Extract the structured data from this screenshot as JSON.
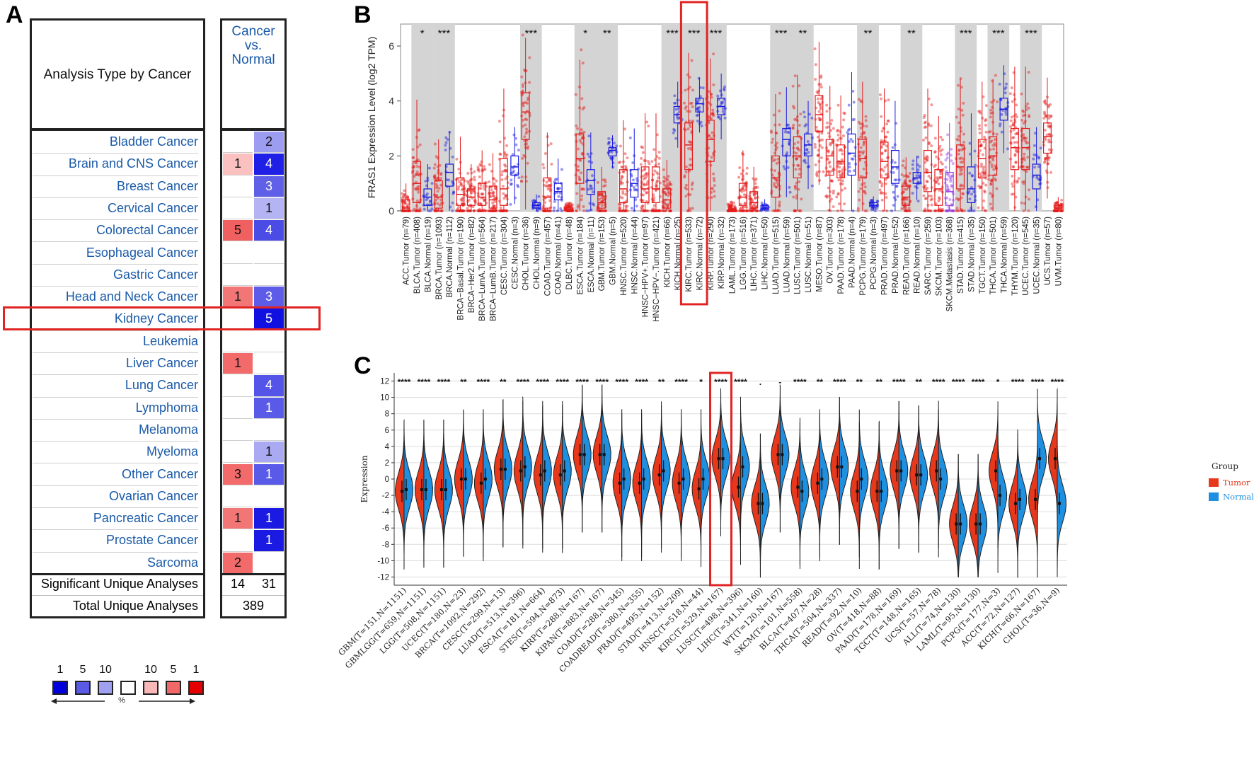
{
  "panelA": {
    "letter": "A",
    "header_analysis": "Analysis Type by Cancer",
    "header_col": [
      "Cancer",
      "vs.",
      "Normal"
    ],
    "rows": [
      {
        "name": "Bladder Cancer",
        "over": "",
        "under": "2",
        "over_shade": "",
        "under_shade": "#9c9cf0"
      },
      {
        "name": "Brain and CNS Cancer",
        "over": "1",
        "under": "4",
        "over_shade": "#fbc0c0",
        "under_shade": "#1f1fe6"
      },
      {
        "name": "Breast Cancer",
        "over": "",
        "under": "3",
        "over_shade": "",
        "under_shade": "#5f5fe8"
      },
      {
        "name": "Cervical Cancer",
        "over": "",
        "under": "1",
        "over_shade": "",
        "under_shade": "#b4b4f4"
      },
      {
        "name": "Colorectal Cancer",
        "over": "5",
        "under": "4",
        "over_shade": "#f06060",
        "under_shade": "#4b4be6"
      },
      {
        "name": "Esophageal Cancer",
        "over": "",
        "under": "",
        "over_shade": "",
        "under_shade": ""
      },
      {
        "name": "Gastric Cancer",
        "over": "",
        "under": "",
        "over_shade": "",
        "under_shade": ""
      },
      {
        "name": "Head and Neck Cancer",
        "over": "1",
        "under": "3",
        "over_shade": "#f27676",
        "under_shade": "#5c5ce8"
      },
      {
        "name": "Kidney Cancer",
        "over": "",
        "under": "5",
        "over_shade": "",
        "under_shade": "#1010e0"
      },
      {
        "name": "Leukemia",
        "over": "",
        "under": "",
        "over_shade": "",
        "under_shade": ""
      },
      {
        "name": "Liver Cancer",
        "over": "1",
        "under": "",
        "over_shade": "#f26a6a",
        "under_shade": ""
      },
      {
        "name": "Lung Cancer",
        "over": "",
        "under": "4",
        "over_shade": "",
        "under_shade": "#5454e8"
      },
      {
        "name": "Lymphoma",
        "over": "",
        "under": "1",
        "over_shade": "",
        "under_shade": "#5a5ae8"
      },
      {
        "name": "Melanoma",
        "over": "",
        "under": "",
        "over_shade": "",
        "under_shade": ""
      },
      {
        "name": "Myeloma",
        "over": "",
        "under": "1",
        "over_shade": "",
        "under_shade": "#aaaaf2"
      },
      {
        "name": "Other Cancer",
        "over": "3",
        "under": "1",
        "over_shade": "#f26a6a",
        "under_shade": "#5a5ae8"
      },
      {
        "name": "Ovarian Cancer",
        "over": "",
        "under": "",
        "over_shade": "",
        "under_shade": ""
      },
      {
        "name": "Pancreatic Cancer",
        "over": "1",
        "under": "1",
        "over_shade": "#f27676",
        "under_shade": "#1a1ae2"
      },
      {
        "name": "Prostate Cancer",
        "over": "",
        "under": "1",
        "over_shade": "",
        "under_shade": "#1a1ae2"
      },
      {
        "name": "Sarcoma",
        "over": "2",
        "under": "",
        "over_shade": "#f26a6a",
        "under_shade": ""
      }
    ],
    "sig_label": "Significant Unique Analyses",
    "sig_over": "14",
    "sig_under": "31",
    "total_label": "Total Unique Analyses",
    "total_value": "389",
    "legend_labels_blue": [
      "1",
      "5",
      "10"
    ],
    "legend_labels_red": [
      "10",
      "5",
      "1"
    ],
    "legend_colors": [
      "#0000dc",
      "#5a5ae6",
      "#a0a0f0",
      "#ffffff",
      "#f8b8b8",
      "#f06868",
      "#e60000"
    ],
    "legend_unit": "%",
    "highlight": "Kidney Cancer"
  },
  "panelB": {
    "letter": "B",
    "chart_data": {
      "type": "box",
      "ylabel": "FRAS1 Expression Level (log2 TPM)",
      "ylim": [
        0,
        6.8
      ],
      "yticks": [
        "0",
        "2",
        "4",
        "6"
      ],
      "categories": [
        "ACC.Tumor (n=79)",
        "BLCA.Tumor (n=408)",
        "BLCA.Normal (n=19)",
        "BRCA.Tumor (n=1093)",
        "BRCA.Normal (n=112)",
        "BRCA−Basal.Tumor (n=190)",
        "BRCA−Her2.Tumor (n=82)",
        "BRCA−LumA.Tumor (n=564)",
        "BRCA−LumB.Tumor (n=217)",
        "CESC.Tumor (n=304)",
        "CESC.Normal (n=3)",
        "CHOL.Tumor (n=36)",
        "CHOL.Normal (n=9)",
        "COAD.Tumor (n=457)",
        "COAD.Normal (n=41)",
        "DLBC.Tumor (n=48)",
        "ESCA.Tumor (n=184)",
        "ESCA.Normal (n=11)",
        "GBM.Tumor (n=153)",
        "GBM.Normal (n=5)",
        "HNSC.Tumor (n=520)",
        "HNSC.Normal (n=44)",
        "HNSC−HPV+.Tumor (n=97)",
        "HNSC−HPV−.Tumor (n=421)",
        "KICH.Tumor (n=66)",
        "KICH.Normal (n=25)",
        "KIRC.Tumor (n=533)",
        "KIRC.Normal (n=72)",
        "KIRP.Tumor (n=290)",
        "KIRP.Normal (n=32)",
        "LAML.Tumor (n=173)",
        "LGG.Tumor (n=516)",
        "LIHC.Tumor (n=371)",
        "LIHC.Normal (n=50)",
        "LUAD.Tumor (n=515)",
        "LUAD.Normal (n=59)",
        "LUSC.Tumor (n=501)",
        "LUSC.Normal (n=51)",
        "MESO.Tumor (n=87)",
        "OV.Tumor (n=303)",
        "PAAD.Tumor (n=178)",
        "PAAD.Normal (n=4)",
        "PCPG.Tumor (n=179)",
        "PCPG.Normal (n=3)",
        "PRAD.Tumor (n=497)",
        "PRAD.Normal (n=52)",
        "READ.Tumor (n=166)",
        "READ.Normal (n=10)",
        "SARC.Tumor (n=259)",
        "SKCM.Tumor (n=103)",
        "SKCM.Metastasis (n=368)",
        "STAD.Tumor (n=415)",
        "STAD.Normal (n=35)",
        "TGCT.Tumor (n=150)",
        "THCA.Tumor (n=501)",
        "THCA.Normal (n=59)",
        "THYM.Tumor (n=120)",
        "UCEC.Tumor (n=545)",
        "UCEC.Normal (n=35)",
        "UCS.Tumor (n=57)",
        "UVM.Tumor (n=80)"
      ],
      "groups": [
        "T",
        "T",
        "N",
        "T",
        "N",
        "T",
        "T",
        "T",
        "T",
        "T",
        "N",
        "T",
        "N",
        "T",
        "N",
        "T",
        "T",
        "N",
        "T",
        "N",
        "T",
        "N",
        "T",
        "T",
        "T",
        "N",
        "T",
        "N",
        "T",
        "N",
        "T",
        "T",
        "T",
        "N",
        "T",
        "N",
        "T",
        "N",
        "T",
        "T",
        "T",
        "N",
        "T",
        "N",
        "T",
        "N",
        "T",
        "N",
        "T",
        "T",
        "M",
        "T",
        "N",
        "T",
        "T",
        "N",
        "T",
        "T",
        "N",
        "T",
        "T"
      ],
      "medians": [
        0.1,
        1.0,
        0.5,
        0.5,
        1.4,
        0.6,
        0.5,
        0.5,
        0.4,
        0.8,
        1.6,
        3.6,
        0.2,
        0.5,
        0.7,
        0.05,
        1.9,
        1.1,
        0.3,
        2.2,
        0.8,
        1.0,
        0.8,
        0.8,
        0.4,
        3.5,
        2.4,
        3.9,
        2.6,
        3.8,
        0.05,
        0.5,
        0.3,
        0.1,
        1.2,
        2.6,
        2.0,
        2.4,
        3.5,
        2.0,
        1.8,
        2.1,
        1.9,
        0.2,
        1.8,
        1.6,
        0.5,
        1.2,
        1.4,
        0.8,
        0.7,
        1.6,
        0.8,
        1.9,
        2.0,
        3.7,
        2.3,
        2.3,
        1.3,
        2.7,
        0.1
      ],
      "q1": [
        0.0,
        0.3,
        0.2,
        0.1,
        0.9,
        0.2,
        0.2,
        0.2,
        0.1,
        0.2,
        1.3,
        2.6,
        0.1,
        0.1,
        0.4,
        0.0,
        1.0,
        0.6,
        0.1,
        2.0,
        0.3,
        0.5,
        0.3,
        0.3,
        0.1,
        3.2,
        1.5,
        3.6,
        1.8,
        3.5,
        0.0,
        0.2,
        0.1,
        0.05,
        0.5,
        2.0,
        1.2,
        2.0,
        2.9,
        1.3,
        1.2,
        1.3,
        1.2,
        0.15,
        1.2,
        1.0,
        0.2,
        1.0,
        0.7,
        0.2,
        0.2,
        0.8,
        0.3,
        1.2,
        1.3,
        3.3,
        1.5,
        1.5,
        0.8,
        2.1,
        0.0
      ],
      "q3": [
        0.4,
        1.8,
        0.8,
        1.1,
        1.7,
        1.2,
        0.8,
        1.0,
        0.9,
        1.9,
        2.0,
        4.3,
        0.3,
        1.2,
        1.0,
        0.1,
        2.8,
        1.5,
        0.7,
        2.3,
        1.5,
        1.5,
        1.6,
        1.6,
        0.8,
        3.8,
        3.2,
        4.1,
        3.3,
        4.1,
        0.1,
        1.0,
        0.7,
        0.2,
        2.0,
        3.0,
        2.7,
        2.8,
        4.2,
        2.6,
        2.4,
        2.8,
        2.6,
        0.3,
        2.5,
        2.2,
        0.9,
        1.4,
        2.2,
        1.5,
        1.4,
        2.4,
        1.6,
        2.6,
        2.7,
        4.1,
        3.0,
        3.0,
        1.7,
        3.2,
        0.2
      ],
      "significance": {
        "BLCA": "*",
        "BRCA": "***",
        "CHOL": "***",
        "ESCA": "*",
        "GBM": "**",
        "KICH": "***",
        "KIRC": "***",
        "KIRP": "***",
        "LUAD": "***",
        "LUSC": "**",
        "PCPG": "**",
        "READ": "**",
        "STAD": "***",
        "THCA": "***",
        "UCEC": "***"
      },
      "colors": {
        "T": "#e51a1a",
        "N": "#1a1ae0",
        "M": "#9a3fe0"
      },
      "highlight": "KIRC"
    }
  },
  "panelC": {
    "letter": "C",
    "chart_data": {
      "type": "split-violin",
      "ylabel": "Expression",
      "ylim": [
        -13,
        13
      ],
      "yticks": [
        "12",
        "10",
        "8",
        "6",
        "4",
        "2",
        "0",
        "-2",
        "-4",
        "-6",
        "-8",
        "-10",
        "-12"
      ],
      "categories": [
        "GBM(T=151,N=1151)",
        "GBMLGG(T=659,N=1151)",
        "LGG(T=508,N=1151)",
        "UCEC(T=180,N=23)",
        "BRCA(T=1092,N=292)",
        "CESC(T=299,N=13)",
        "LUAD(T=513,N=396)",
        "ESCA(T=181,N=664)",
        "STES(T=594,N=873)",
        "KIRP(T=288,N=167)",
        "KIPAN(T=883,N=167)",
        "COAD(T=288,N=345)",
        "COADREAD(T=380,N=355)",
        "PRAD(T=495,N=152)",
        "STAD(T=413,N=209)",
        "HNSC(T=518,N=44)",
        "KIRC(T=529,N=167)",
        "LUSC(T=498,N=396)",
        "LIHC(T=341,N=160)",
        "WT(T=120,N=167)",
        "SKCM(T=101,N=558)",
        "BLCA(T=407,N=28)",
        "THCA(T=504,N=337)",
        "READ(T=92,N=10)",
        "OV(T=418,N=88)",
        "PAAD(T=178,N=169)",
        "TGCT(T=148,N=165)",
        "UCS(T=57,N=78)",
        "ALL(T=74,N=130)",
        "LAML(T=95,N=130)",
        "PCPG(T=177,N=3)",
        "ACC(T=72,N=127)",
        "KICH(T=66,N=167)",
        "CHOL(T=36,N=9)"
      ],
      "tumor_median": [
        -1.5,
        -1.3,
        -1.3,
        0.0,
        -0.5,
        1.2,
        1.0,
        0.5,
        0.5,
        3.0,
        3.0,
        -0.5,
        -0.5,
        0.5,
        -0.5,
        -1.2,
        2.5,
        -1.0,
        -3.0,
        3.0,
        -1.0,
        -0.5,
        1.5,
        -1.5,
        -1.5,
        1.0,
        0.5,
        1.0,
        -5.5,
        -5.5,
        1.0,
        -3.0,
        -2.5,
        2.5
      ],
      "normal_median": [
        -1.3,
        -1.3,
        -1.3,
        0.0,
        0.0,
        1.2,
        1.5,
        1.0,
        1.0,
        3.0,
        3.0,
        0.0,
        0.0,
        1.0,
        0.0,
        0.0,
        2.5,
        1.5,
        -3.0,
        3.0,
        -1.5,
        0.0,
        1.5,
        0.0,
        -1.5,
        1.0,
        0.5,
        0.0,
        -5.5,
        -5.5,
        -2.0,
        -2.5,
        2.5,
        -3.0
      ],
      "significance": [
        "****",
        "****",
        "****",
        "**",
        "****",
        "**",
        "****",
        "****",
        "****",
        "****",
        "****",
        "****",
        "****",
        "**",
        "****",
        "*",
        "****",
        "****",
        ".",
        "-",
        "****",
        "**",
        "****",
        "**",
        "**",
        "****",
        "**",
        "****",
        "****",
        "****",
        "*",
        "****",
        "****",
        "****"
      ],
      "legend_title": "Group",
      "legend_entries": [
        "Tumor",
        "Normal"
      ],
      "colors": {
        "Tumor": "#e8381c",
        "Normal": "#1f8fe0"
      },
      "highlight": "KIRC(T=529,N=167)"
    }
  }
}
